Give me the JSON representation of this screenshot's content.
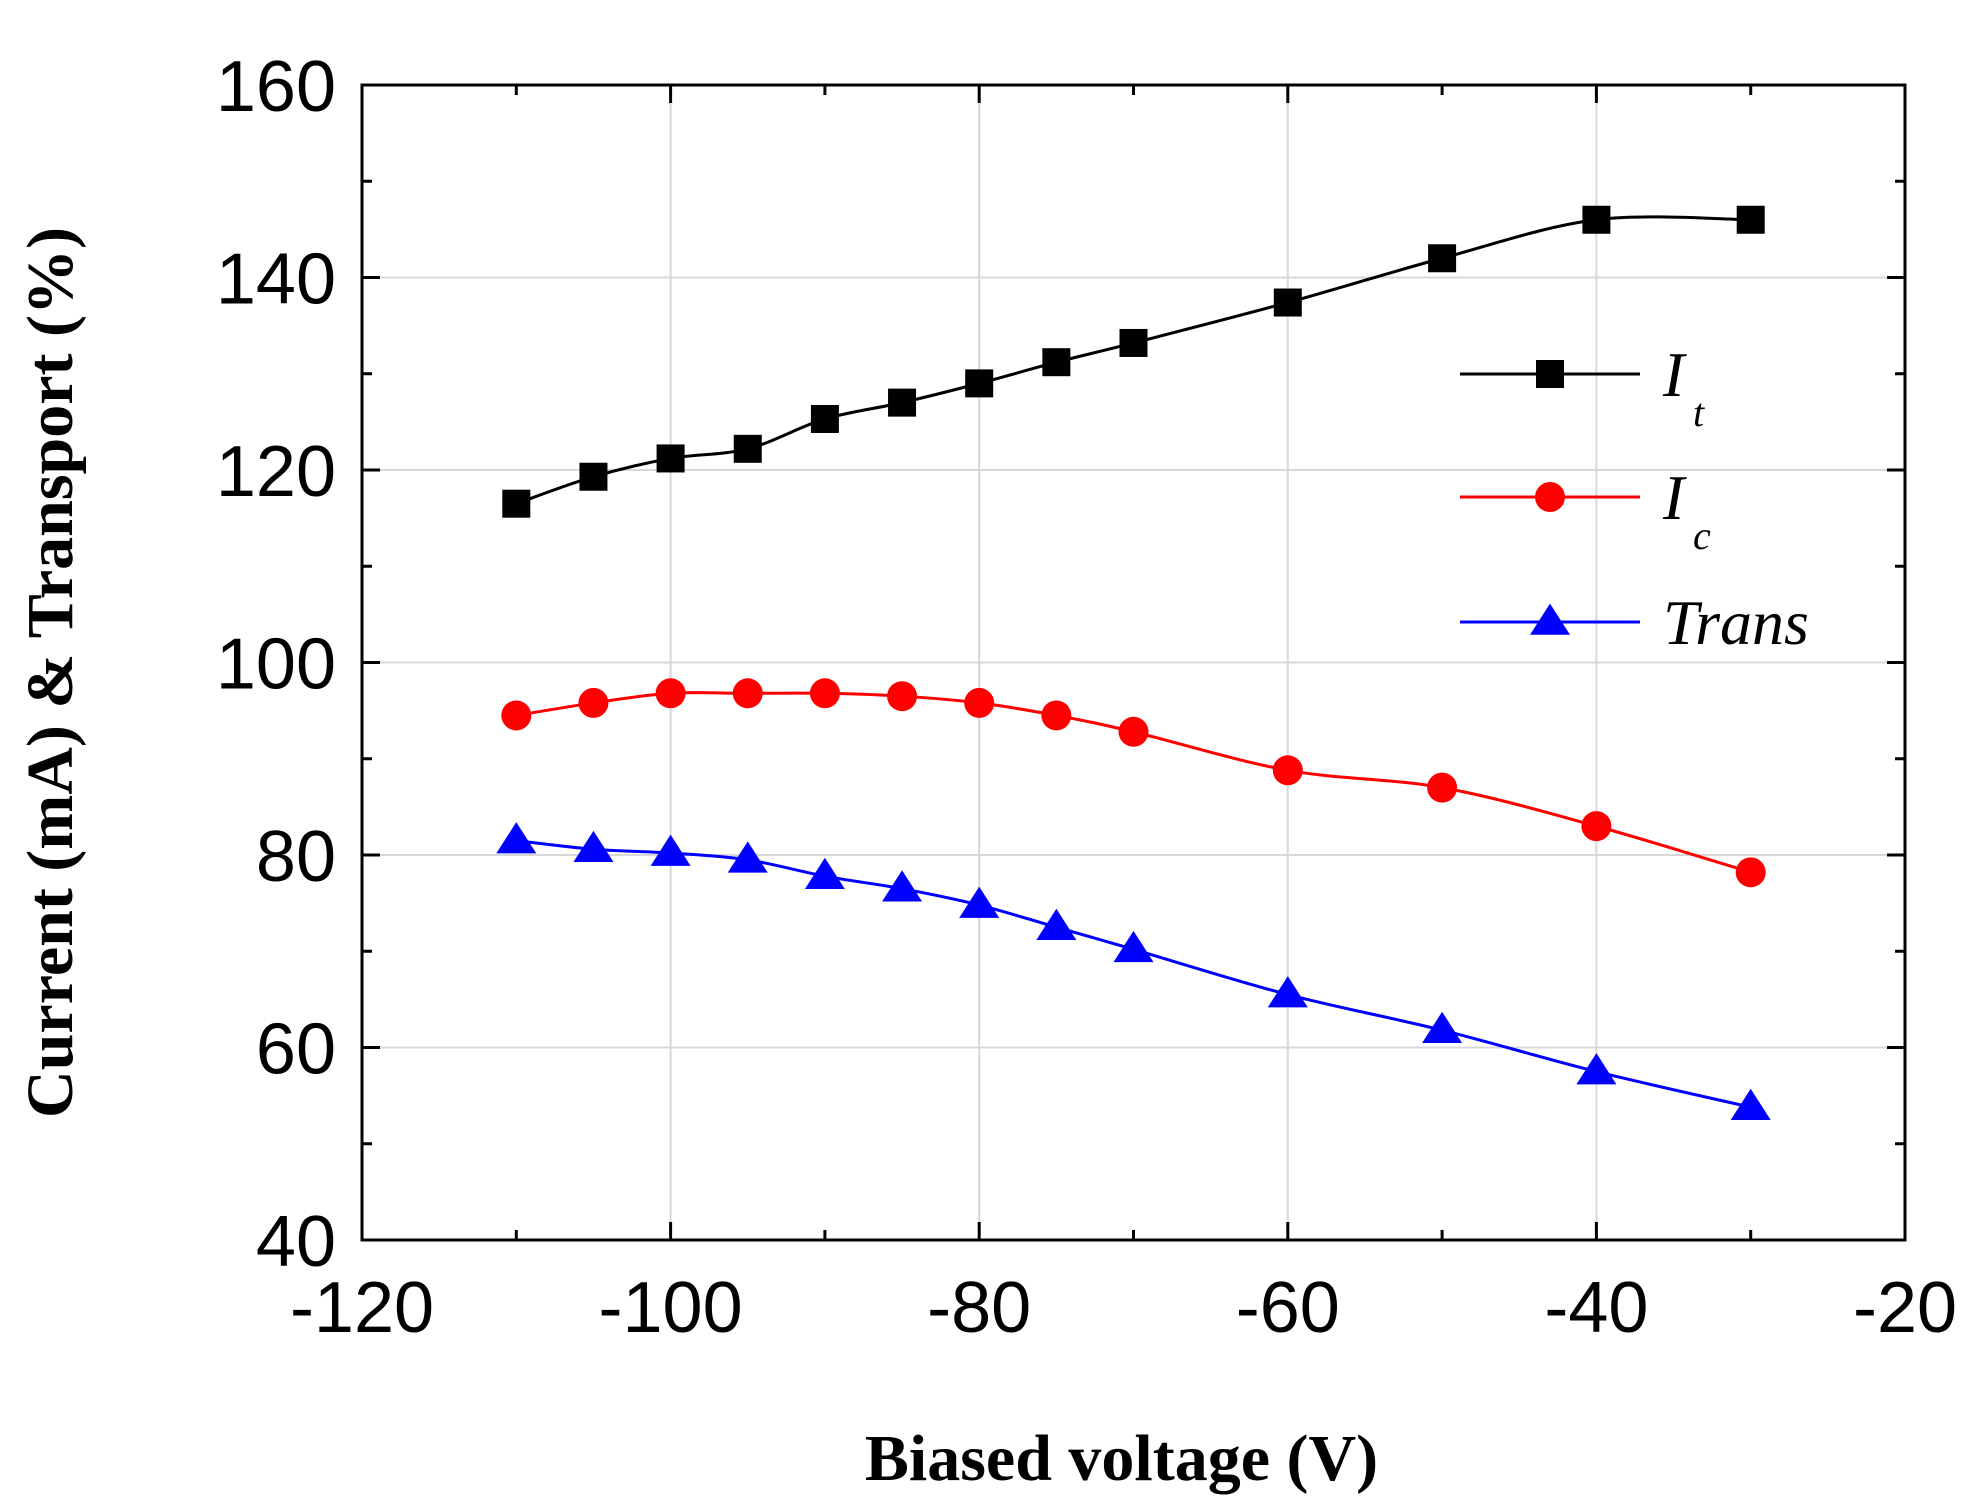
{
  "chart_data": {
    "type": "line",
    "title": "",
    "xlabel": "Biased voltage (V)",
    "ylabel": "Current (mA) & Transport (%)",
    "xlim": [
      -120,
      -20
    ],
    "ylim": [
      40,
      160
    ],
    "xticks": [
      -120,
      -100,
      -80,
      -60,
      -40,
      -20
    ],
    "yticks": [
      40,
      60,
      80,
      100,
      120,
      140,
      160
    ],
    "xtick_labels": [
      "-120",
      "-100",
      "-80",
      "-60",
      "-40",
      "-20"
    ],
    "ytick_labels": [
      "40",
      "60",
      "80",
      "100",
      "120",
      "140",
      "160"
    ],
    "grid": true,
    "legend_position": "right",
    "x": [
      -110,
      -105,
      -100,
      -95,
      -90,
      -85,
      -80,
      -75,
      -70,
      -60,
      -50,
      -40,
      -30
    ],
    "series": [
      {
        "name": "It",
        "label_main": "I",
        "label_sub": "t",
        "marker": "square",
        "color": "#000000",
        "values": [
          116.5,
          119.3,
          121.2,
          122.2,
          125.3,
          127.0,
          129.0,
          131.2,
          133.2,
          137.4,
          142.0,
          146.0,
          146.0
        ]
      },
      {
        "name": "Ic",
        "label_main": "I",
        "label_sub": "c",
        "marker": "circle",
        "color": "#ff0000",
        "values": [
          94.5,
          95.8,
          96.8,
          96.8,
          96.8,
          96.5,
          95.8,
          94.5,
          92.8,
          88.8,
          87.0,
          83.0,
          78.2
        ]
      },
      {
        "name": "Trans",
        "label_main": "Trans",
        "label_sub": "",
        "marker": "triangle",
        "color": "#0000ff",
        "values": [
          81.5,
          80.6,
          80.2,
          79.5,
          77.8,
          76.5,
          74.8,
          72.5,
          70.2,
          65.5,
          61.8,
          57.5,
          53.8
        ]
      }
    ]
  }
}
